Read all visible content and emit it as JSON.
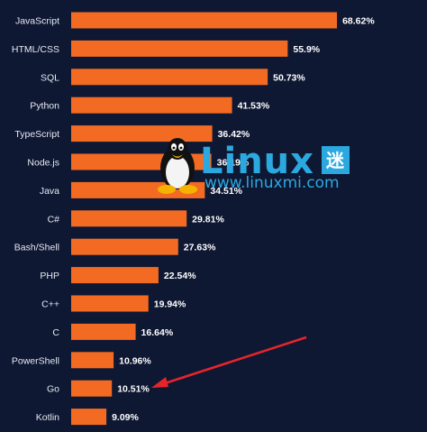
{
  "chart_data": {
    "type": "bar",
    "orientation": "horizontal",
    "categories": [
      "JavaScript",
      "HTML/CSS",
      "SQL",
      "Python",
      "TypeScript",
      "Node.js",
      "Java",
      "C#",
      "Bash/Shell",
      "PHP",
      "C++",
      "C",
      "PowerShell",
      "Go",
      "Kotlin"
    ],
    "values": [
      68.62,
      55.9,
      50.73,
      41.53,
      36.42,
      36.19,
      34.51,
      29.81,
      27.63,
      22.54,
      19.94,
      16.64,
      10.96,
      10.51,
      9.09
    ],
    "value_labels": [
      "68.62%",
      "55.9%",
      "50.73%",
      "41.53%",
      "36.42%",
      "36.19%",
      "34.51%",
      "29.81%",
      "27.63%",
      "22.54%",
      "19.94%",
      "16.64%",
      "10.96%",
      "10.51%",
      "9.09%"
    ],
    "bar_color": "#f36b22",
    "background_color": "#0f1833",
    "grid": false,
    "legend": "none",
    "annotation": {
      "type": "arrow",
      "target_category": "Go",
      "color": "#e8242b"
    }
  },
  "watermark": {
    "brand": "Linux",
    "brand_cn": "迷",
    "url": "www.linuxmi.com",
    "icon": "tux-penguin-icon",
    "color": "#2ba8e0"
  }
}
